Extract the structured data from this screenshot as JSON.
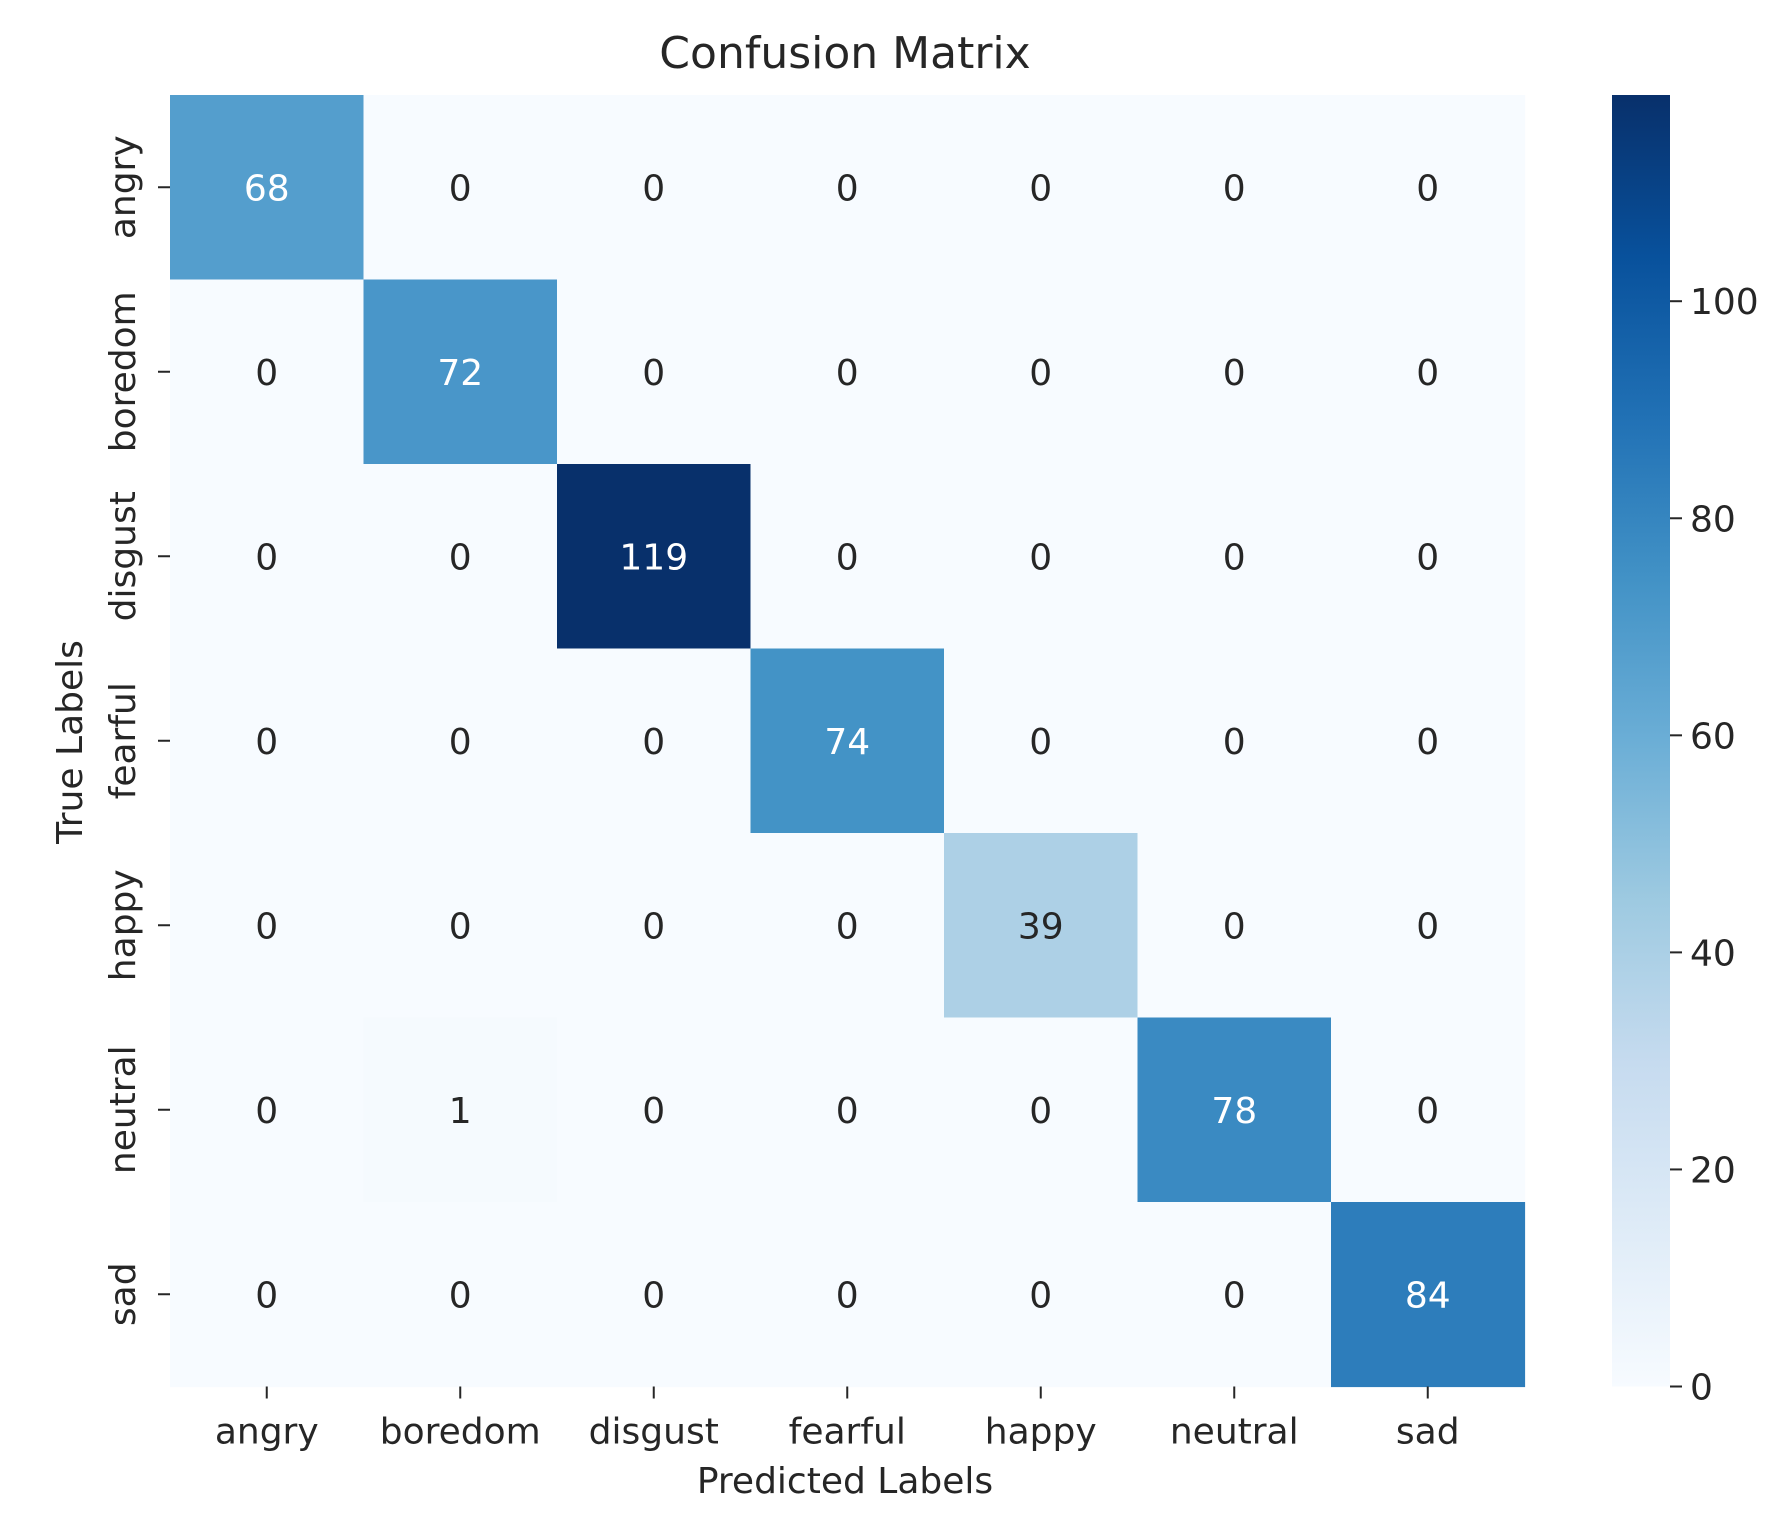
{
  "chart_data": {
    "type": "heatmap",
    "title": "Confusion Matrix",
    "xlabel": "Predicted Labels",
    "ylabel": "True Labels",
    "x_categories": [
      "angry",
      "boredom",
      "disgust",
      "fearful",
      "happy",
      "neutral",
      "sad"
    ],
    "y_categories": [
      "angry",
      "boredom",
      "disgust",
      "fearful",
      "happy",
      "neutral",
      "sad"
    ],
    "values": [
      [
        68,
        0,
        0,
        0,
        0,
        0,
        0
      ],
      [
        0,
        72,
        0,
        0,
        0,
        0,
        0
      ],
      [
        0,
        0,
        119,
        0,
        0,
        0,
        0
      ],
      [
        0,
        0,
        0,
        74,
        0,
        0,
        0
      ],
      [
        0,
        0,
        0,
        0,
        39,
        0,
        0
      ],
      [
        0,
        1,
        0,
        0,
        0,
        78,
        0
      ],
      [
        0,
        0,
        0,
        0,
        0,
        0,
        84
      ]
    ],
    "colorscale": "Blues",
    "color_range": [
      0,
      119
    ],
    "colorbar_ticks": [
      0,
      20,
      40,
      60,
      80,
      100
    ],
    "annotations": true,
    "grid": false
  }
}
